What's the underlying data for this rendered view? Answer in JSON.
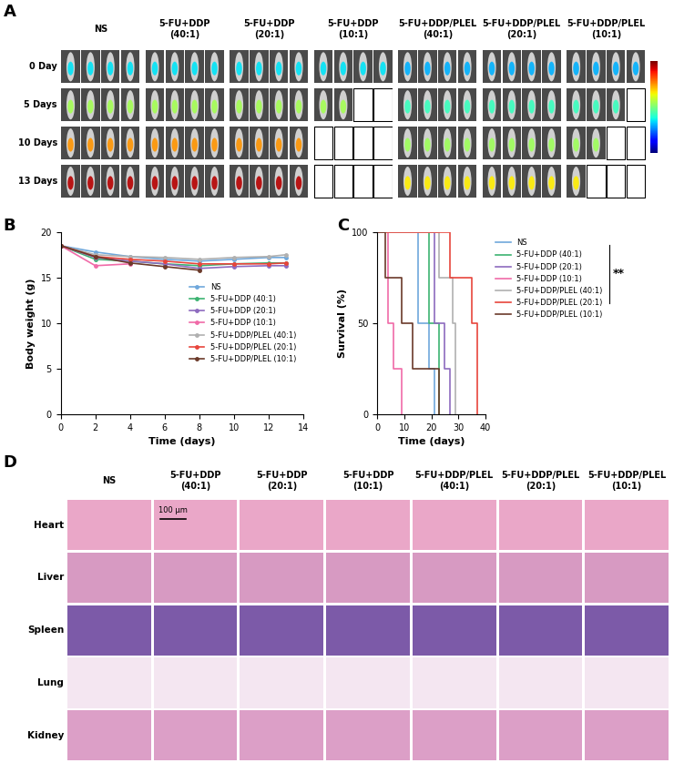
{
  "panel_A": {
    "label": "A",
    "groups": [
      "NS",
      "5-FU+DDP\n(40:1)",
      "5-FU+DDP\n(20:1)",
      "5-FU+DDP\n(10:1)",
      "5-FU+DDP/PLEL\n(40:1)",
      "5-FU+DDP/PLEL\n(20:1)",
      "5-FU+DDP/PLEL\n(10:1)"
    ],
    "timepoints": [
      "0 Day",
      "5 Days",
      "10 Days",
      "13 Days"
    ],
    "mice_shown": [
      [
        4,
        4,
        4,
        4
      ],
      [
        4,
        4,
        4,
        4
      ],
      [
        4,
        4,
        4,
        4
      ],
      [
        4,
        2,
        0,
        0
      ],
      [
        4,
        4,
        4,
        4
      ],
      [
        4,
        4,
        4,
        4
      ],
      [
        4,
        3,
        2,
        1
      ]
    ]
  },
  "chart_data": [
    {
      "label": "B",
      "type": "line",
      "x_label": "Time (days)",
      "y_label": "Body weight (g)",
      "x": [
        0,
        2,
        4,
        6,
        8,
        10,
        12,
        13
      ],
      "xlim": [
        0,
        14
      ],
      "xticks": [
        0,
        2,
        4,
        6,
        8,
        10,
        12,
        14
      ],
      "ylim": [
        0,
        20
      ],
      "yticks": [
        0,
        5,
        10,
        15,
        20
      ],
      "legend": "center right",
      "marker": "o",
      "series": [
        {
          "name": "NS",
          "color": "#6fa8dc",
          "values": [
            18.5,
            17.8,
            17.3,
            17.0,
            16.8,
            17.0,
            17.2,
            17.2
          ]
        },
        {
          "name": "5-FU+DDP (40:1)",
          "color": "#3cb371",
          "values": [
            18.5,
            17.0,
            16.8,
            16.5,
            16.3,
            16.5,
            16.6,
            16.6
          ]
        },
        {
          "name": "5-FU+DDP (20:1)",
          "color": "#8e6bbf",
          "values": [
            18.5,
            17.2,
            16.8,
            16.5,
            16.0,
            16.2,
            16.3,
            16.3
          ]
        },
        {
          "name": "5-FU+DDP (10:1)",
          "color": "#f06ba8",
          "values": [
            18.5,
            16.3,
            16.5,
            null,
            null,
            null,
            null,
            null
          ]
        },
        {
          "name": "5-FU+DDP/PLEL (40:1)",
          "color": "#b0b0b0",
          "values": [
            18.5,
            17.5,
            17.3,
            17.2,
            17.0,
            17.2,
            17.3,
            17.5
          ]
        },
        {
          "name": "5-FU+DDP/PLEL (20:1)",
          "color": "#e8453c",
          "values": [
            18.5,
            17.3,
            17.0,
            16.8,
            16.5,
            16.5,
            16.5,
            16.6
          ]
        },
        {
          "name": "5-FU+DDP/PLEL (10:1)",
          "color": "#6b3a2a",
          "values": [
            18.5,
            17.3,
            16.6,
            16.2,
            15.8,
            null,
            null,
            null
          ]
        }
      ]
    },
    {
      "label": "C",
      "type": "step",
      "x_label": "Time (days)",
      "y_label": "Survival (%)",
      "xlim": [
        0,
        40
      ],
      "xticks": [
        0,
        10,
        20,
        30,
        40
      ],
      "ylim": [
        0,
        100
      ],
      "yticks": [
        0,
        50,
        100
      ],
      "legend": "upper left",
      "annotation": "**",
      "series": [
        {
          "name": "NS",
          "color": "#6fa8dc",
          "x": [
            0,
            15,
            19,
            21
          ],
          "values": [
            100,
            50,
            25,
            0
          ]
        },
        {
          "name": "5-FU+DDP (40:1)",
          "color": "#3cb371",
          "x": [
            0,
            19,
            23
          ],
          "values": [
            100,
            50,
            0
          ]
        },
        {
          "name": "5-FU+DDP (20:1)",
          "color": "#8e6bbf",
          "x": [
            0,
            21,
            25,
            27
          ],
          "values": [
            100,
            50,
            25,
            0
          ]
        },
        {
          "name": "5-FU+DDP (10:1)",
          "color": "#f06ba8",
          "x": [
            0,
            4,
            6,
            9
          ],
          "values": [
            100,
            50,
            25,
            0
          ]
        },
        {
          "name": "5-FU+DDP/PLEL (40:1)",
          "color": "#b0b0b0",
          "x": [
            0,
            23,
            28,
            29
          ],
          "values": [
            100,
            75,
            50,
            0
          ]
        },
        {
          "name": "5-FU+DDP/PLEL (20:1)",
          "color": "#e8453c",
          "x": [
            0,
            27,
            35,
            37
          ],
          "values": [
            100,
            75,
            50,
            0
          ]
        },
        {
          "name": "5-FU+DDP/PLEL (10:1)",
          "color": "#6b3a2a",
          "x": [
            0,
            3,
            9,
            13,
            23
          ],
          "values": [
            100,
            75,
            50,
            25,
            0
          ]
        }
      ]
    }
  ],
  "panel_D": {
    "label": "D",
    "groups": [
      "NS",
      "5-FU+DDP\n(40:1)",
      "5-FU+DDP\n(20:1)",
      "5-FU+DDP\n(10:1)",
      "5-FU+DDP/PLEL\n(40:1)",
      "5-FU+DDP/PLEL\n(20:1)",
      "5-FU+DDP/PLEL\n(10:1)"
    ],
    "tissues": [
      "Heart",
      "Liver",
      "Spleen",
      "Lung",
      "Kidney"
    ],
    "scale_bar": "100 μm"
  }
}
